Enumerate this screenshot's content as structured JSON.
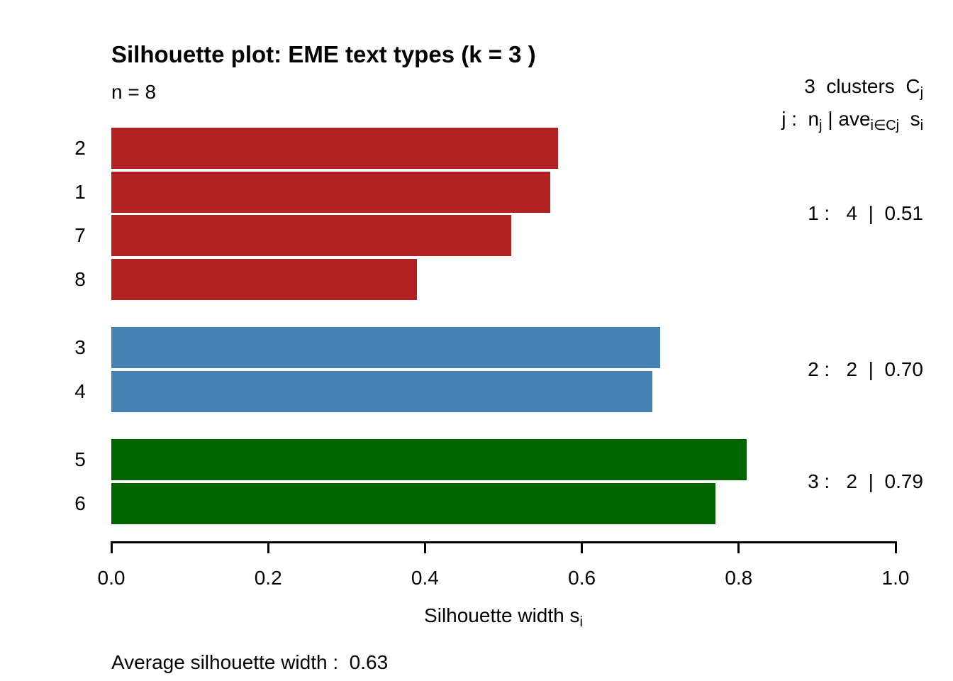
{
  "title": "Silhouette plot: EME text types (k = 3 )",
  "n_label": "n = 8",
  "legend": {
    "line1_pre": "3  clusters  C",
    "line1_sub": "j",
    "line2_p1": "j :  n",
    "line2_s1": "j",
    "line2_p2": " | ave",
    "line2_s2": "i∈Cj",
    "line2_p3": "  s",
    "line2_s3": "i"
  },
  "xlabel": {
    "pre": "Silhouette width s",
    "sub": "i"
  },
  "footer": {
    "average_label": "Average silhouette width :  0.63"
  },
  "chart_data": {
    "type": "bar",
    "orientation": "horizontal",
    "title": "Silhouette plot: EME text types (k = 3 )",
    "n": 8,
    "k": 3,
    "average_silhouette_width": 0.63,
    "xlim": [
      0.0,
      1.0
    ],
    "x_ticks": [
      {
        "value": 0.0,
        "label": "0.0"
      },
      {
        "value": 0.2,
        "label": "0.2"
      },
      {
        "value": 0.4,
        "label": "0.4"
      },
      {
        "value": 0.6,
        "label": "0.6"
      },
      {
        "value": 0.8,
        "label": "0.8"
      },
      {
        "value": 1.0,
        "label": "1.0"
      }
    ],
    "observations": [
      {
        "id": "2",
        "cluster": 1,
        "value": 0.57
      },
      {
        "id": "1",
        "cluster": 1,
        "value": 0.56
      },
      {
        "id": "7",
        "cluster": 1,
        "value": 0.51
      },
      {
        "id": "8",
        "cluster": 1,
        "value": 0.39
      },
      {
        "id": "3",
        "cluster": 2,
        "value": 0.7
      },
      {
        "id": "4",
        "cluster": 2,
        "value": 0.69
      },
      {
        "id": "5",
        "cluster": 3,
        "value": 0.81
      },
      {
        "id": "6",
        "cluster": 3,
        "value": 0.77
      }
    ],
    "clusters": [
      {
        "j": 1,
        "size": 4,
        "avg_width": 0.51,
        "color": "#b22222",
        "summary": "1 :   4  |  0.51"
      },
      {
        "j": 2,
        "size": 2,
        "avg_width": 0.7,
        "color": "#4682b4",
        "summary": "2 :   2  |  0.70"
      },
      {
        "j": 3,
        "size": 2,
        "avg_width": 0.79,
        "color": "#006400",
        "summary": "3 :   2  |  0.79"
      }
    ]
  }
}
